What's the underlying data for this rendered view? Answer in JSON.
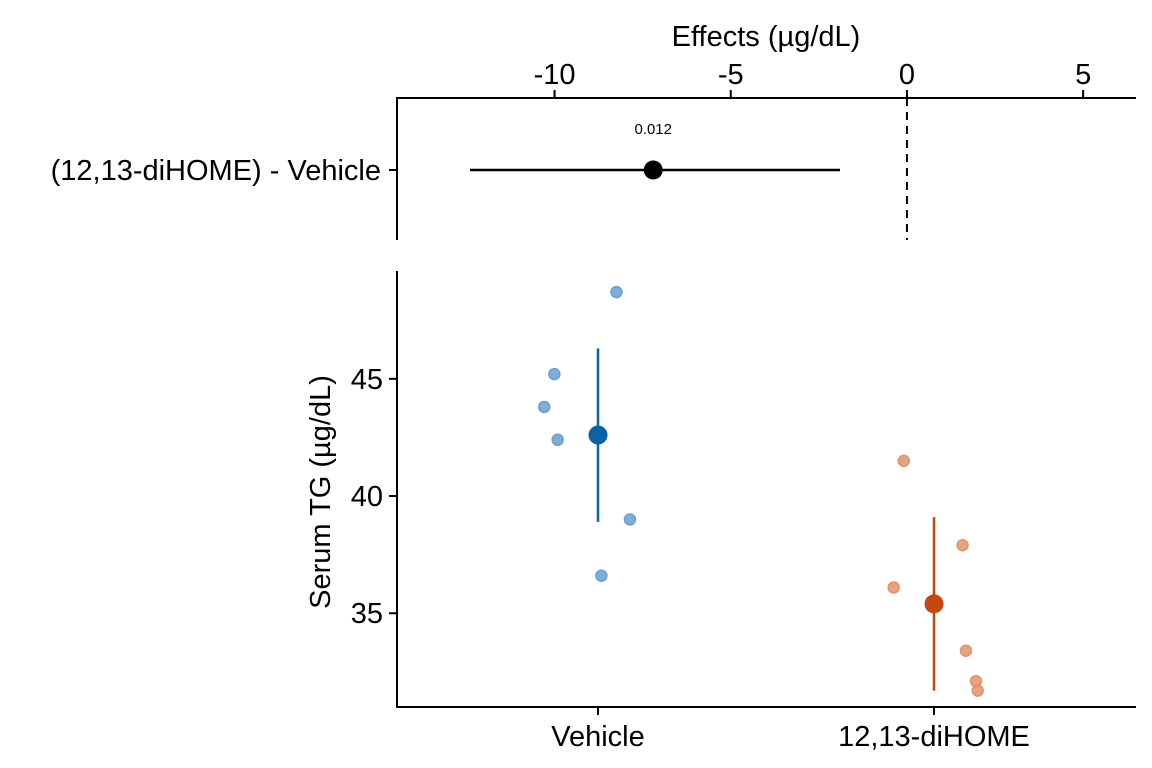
{
  "chart_data": [
    {
      "type": "scatter",
      "panel": "effects",
      "title": "",
      "xlabel": "Effects (µg/dL)",
      "ylabel": "",
      "xlim": [
        -14.5,
        6.5
      ],
      "x_ticks": [
        -10,
        -5,
        0,
        5
      ],
      "x_tick_labels": [
        "-10",
        "-5",
        "0",
        "5"
      ],
      "reference_line_x": 0,
      "rows": [
        {
          "label": "(12,13-diHOME) - Vehicle",
          "estimate": -7.2,
          "ci_low": -12.4,
          "ci_high": -1.9,
          "p_label": "0.012"
        }
      ],
      "colors": {
        "point": "#000000"
      }
    },
    {
      "type": "scatter",
      "panel": "raw",
      "title": "",
      "xlabel": "",
      "ylabel": "Serum TG (µg/dL)",
      "ylim": [
        31.0,
        49.6
      ],
      "y_ticks": [
        35,
        40,
        45
      ],
      "y_tick_labels": [
        "35",
        "40",
        "45"
      ],
      "categories": [
        "Vehicle",
        "12,13-diHOME"
      ],
      "groups": [
        {
          "category": "Vehicle",
          "color": "#0b63a7",
          "point_color": "#6a9fd0",
          "mean": 42.6,
          "ci_low": 38.9,
          "ci_high": 46.3,
          "points": [
            {
              "x_offset": 0.11,
              "y": 48.7
            },
            {
              "x_offset": -0.26,
              "y": 45.2
            },
            {
              "x_offset": -0.32,
              "y": 43.8
            },
            {
              "x_offset": -0.24,
              "y": 42.4
            },
            {
              "x_offset": 0.19,
              "y": 39.0
            },
            {
              "x_offset": 0.02,
              "y": 36.6
            }
          ]
        },
        {
          "category": "12,13-diHOME",
          "color": "#c4470b",
          "point_color": "#e1936c",
          "mean": 35.4,
          "ci_low": 31.7,
          "ci_high": 39.1,
          "points": [
            {
              "x_offset": -0.18,
              "y": 41.5
            },
            {
              "x_offset": 0.17,
              "y": 37.9
            },
            {
              "x_offset": -0.24,
              "y": 36.1
            },
            {
              "x_offset": 0.19,
              "y": 33.4
            },
            {
              "x_offset": 0.25,
              "y": 32.1
            },
            {
              "x_offset": 0.26,
              "y": 31.7
            }
          ]
        }
      ]
    }
  ]
}
